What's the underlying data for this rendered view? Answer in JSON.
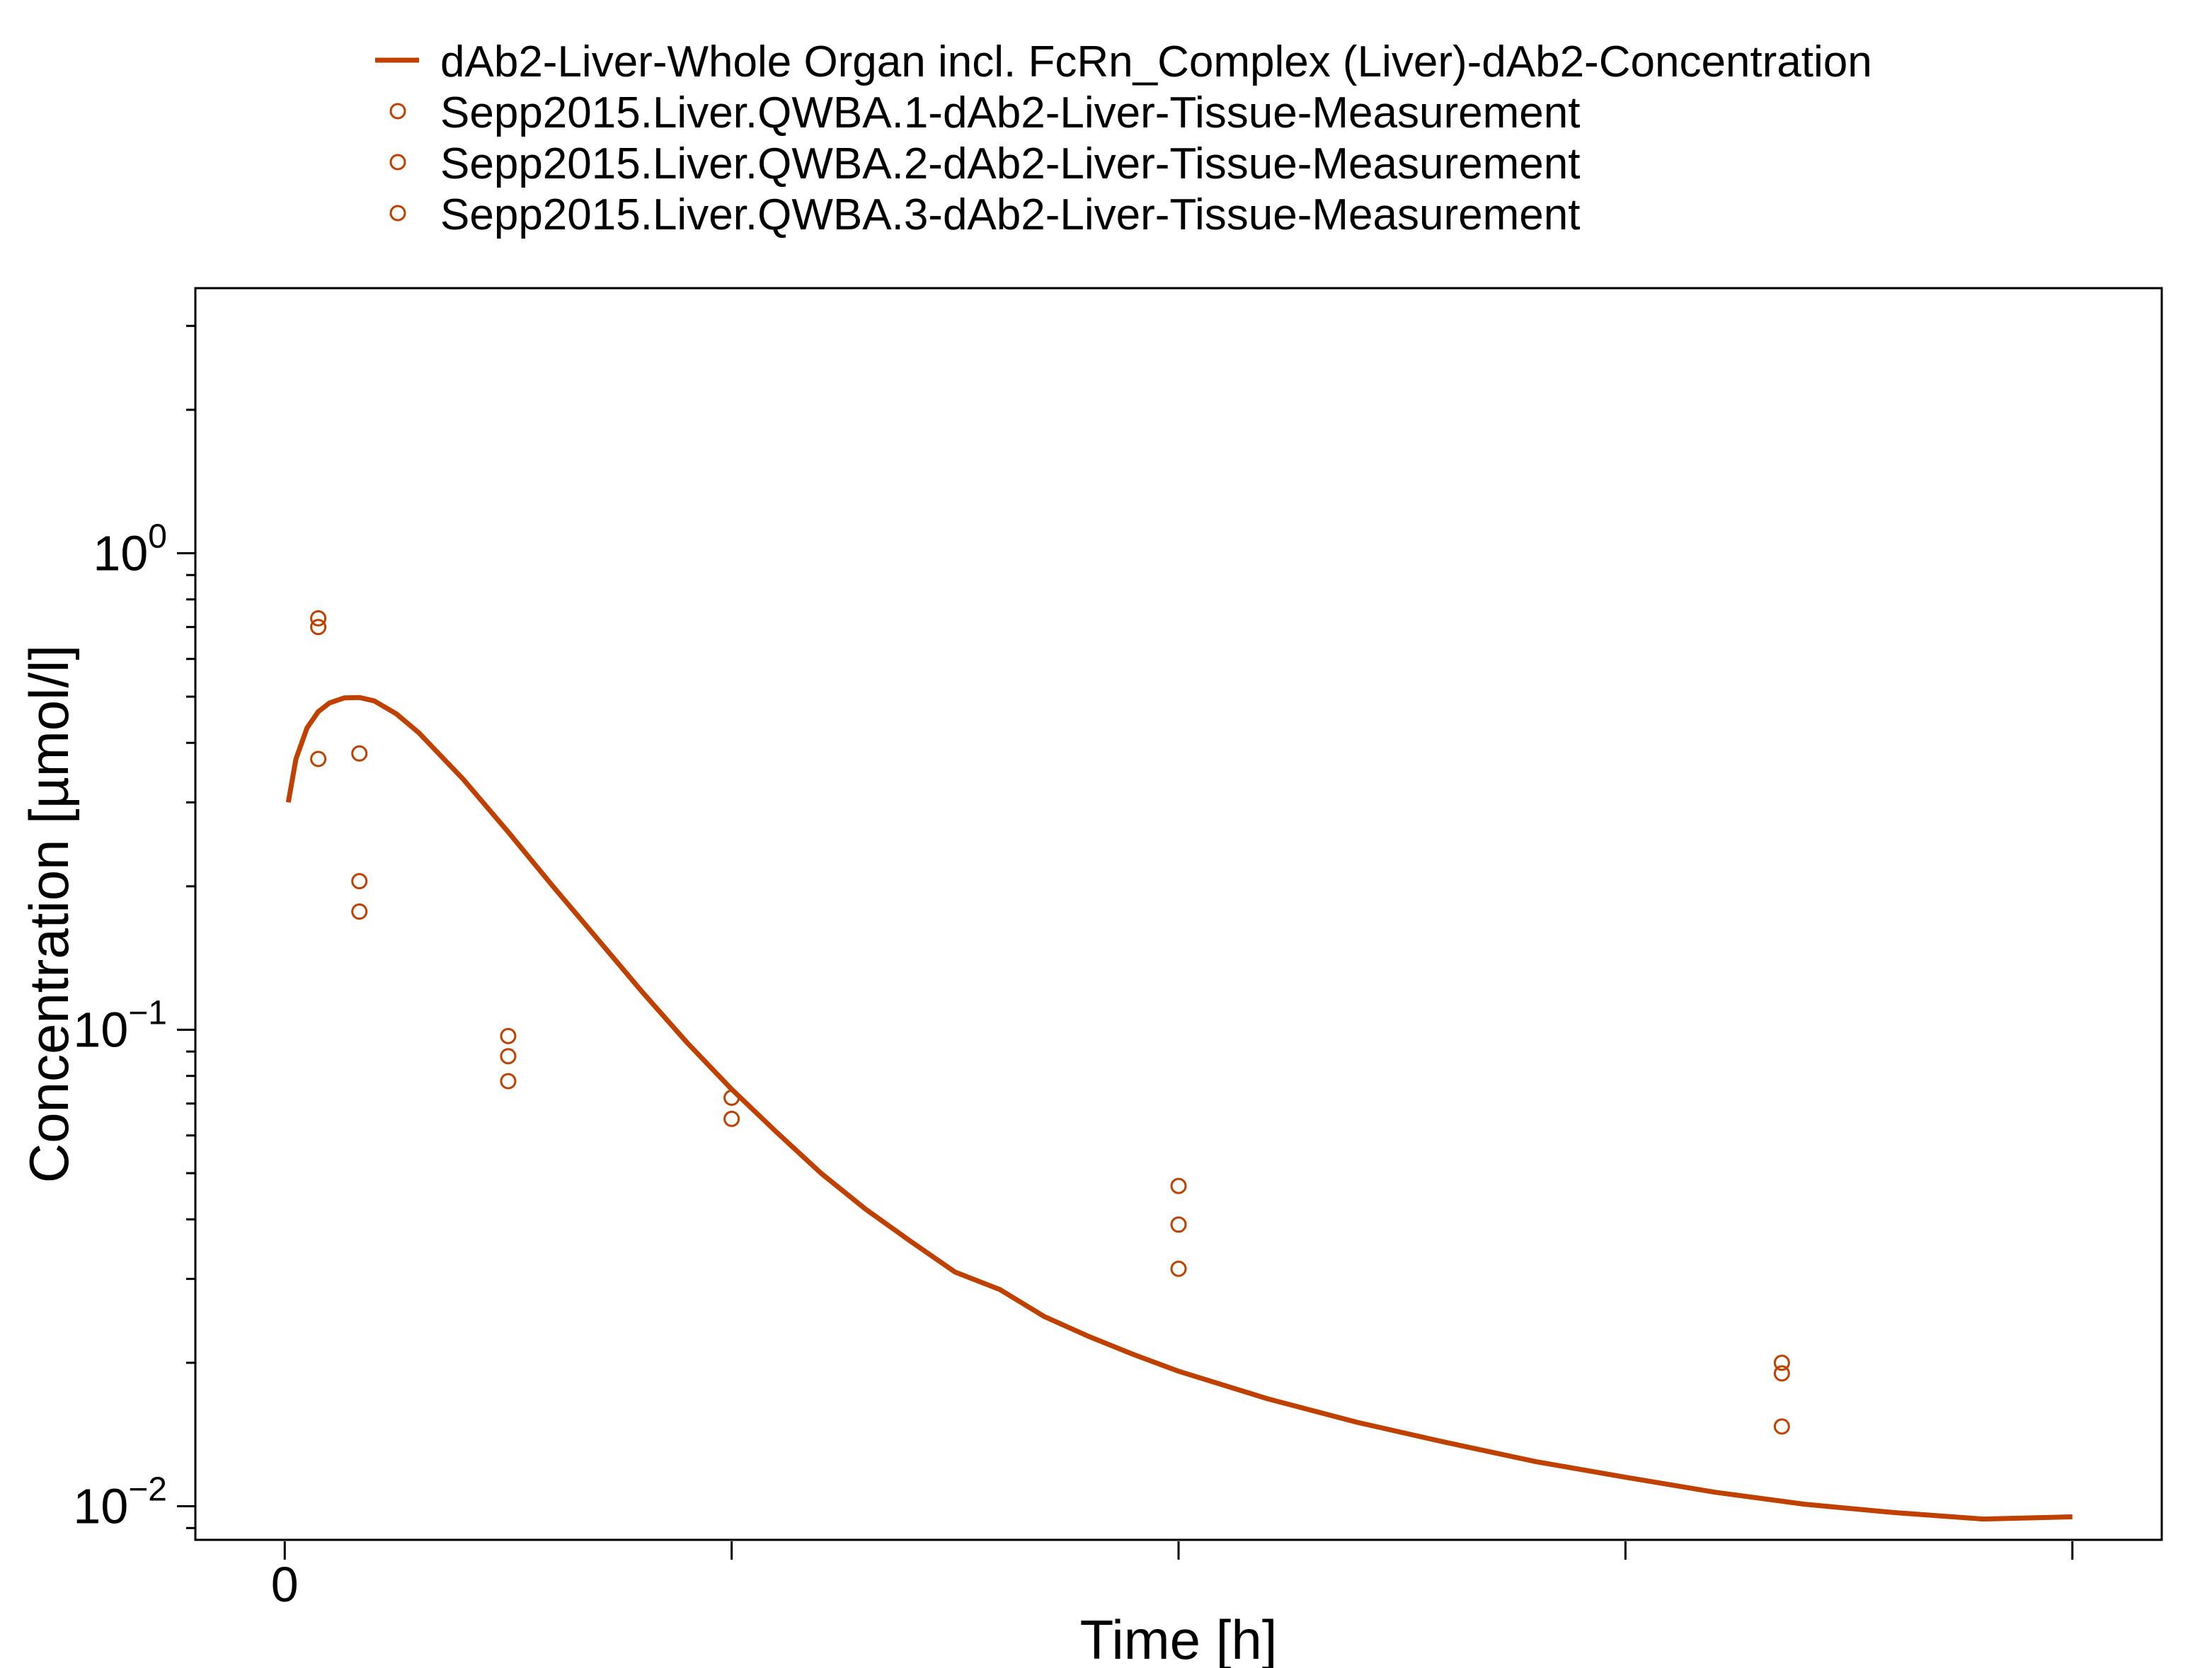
{
  "chart_data": {
    "type": "line",
    "xlabel": "Time [h]",
    "ylabel": "Concentration [µmol/l]",
    "x_tick_labels": [
      "0"
    ],
    "y_scale": "log",
    "xlim": [
      -2,
      42
    ],
    "ylim": [
      0.0085,
      3.6
    ],
    "y_ticks": [
      {
        "value": 1,
        "base": "10",
        "exp": "0"
      },
      {
        "value": 0.1,
        "base": "10",
        "exp": "−1"
      },
      {
        "value": 0.01,
        "base": "10",
        "exp": "−2"
      }
    ],
    "legend_position": "top",
    "grid": false,
    "series": [
      {
        "name": "dAb2-Liver-Whole Organ incl. FcRn_Complex (Liver)-dAb2-Concentration",
        "kind": "line",
        "color": "#c04000",
        "x": [
          0.08,
          0.25,
          0.5,
          0.75,
          1.0,
          1.33,
          1.67,
          2.0,
          2.5,
          3.0,
          4.0,
          5.0,
          6.0,
          7.0,
          8.0,
          9.0,
          10.0,
          11.0,
          12.0,
          13.0,
          14.0,
          15.0,
          16.0,
          17.0,
          18.0,
          19.0,
          20.0,
          22.0,
          24.0,
          26.0,
          28.0,
          30.0,
          32.0,
          34.0,
          36.0,
          38.0,
          40.0
        ],
        "y": [
          0.3,
          0.37,
          0.43,
          0.465,
          0.485,
          0.497,
          0.498,
          0.49,
          0.46,
          0.42,
          0.335,
          0.26,
          0.2,
          0.155,
          0.12,
          0.094,
          0.075,
          0.061,
          0.05,
          0.042,
          0.036,
          0.031,
          0.0285,
          0.025,
          0.0227,
          0.0208,
          0.0192,
          0.0168,
          0.015,
          0.0136,
          0.0124,
          0.0115,
          0.0107,
          0.0101,
          0.0097,
          0.0094,
          0.0095
        ]
      },
      {
        "name": "Sepp2015.Liver.QWBA.1-dAb2-Liver-Tissue-Measurement",
        "kind": "scatter",
        "color": "#c04000",
        "x": [
          0.75,
          1.67,
          5.0,
          10.0,
          20.0,
          33.5
        ],
        "y": [
          0.73,
          0.38,
          0.097,
          0.072,
          0.047,
          0.02
        ]
      },
      {
        "name": "Sepp2015.Liver.QWBA.2-dAb2-Liver-Tissue-Measurement",
        "kind": "scatter",
        "color": "#c04000",
        "x": [
          0.75,
          1.67,
          5.0,
          10.0,
          20.0,
          33.5
        ],
        "y": [
          0.7,
          0.205,
          0.088,
          0.065,
          0.039,
          0.019
        ]
      },
      {
        "name": "Sepp2015.Liver.QWBA.3-dAb2-Liver-Tissue-Measurement",
        "kind": "scatter",
        "color": "#c04000",
        "x": [
          0.75,
          1.67,
          5.0,
          20.0,
          33.5
        ],
        "y": [
          0.37,
          0.177,
          0.078,
          0.0315,
          0.0147
        ]
      }
    ]
  }
}
